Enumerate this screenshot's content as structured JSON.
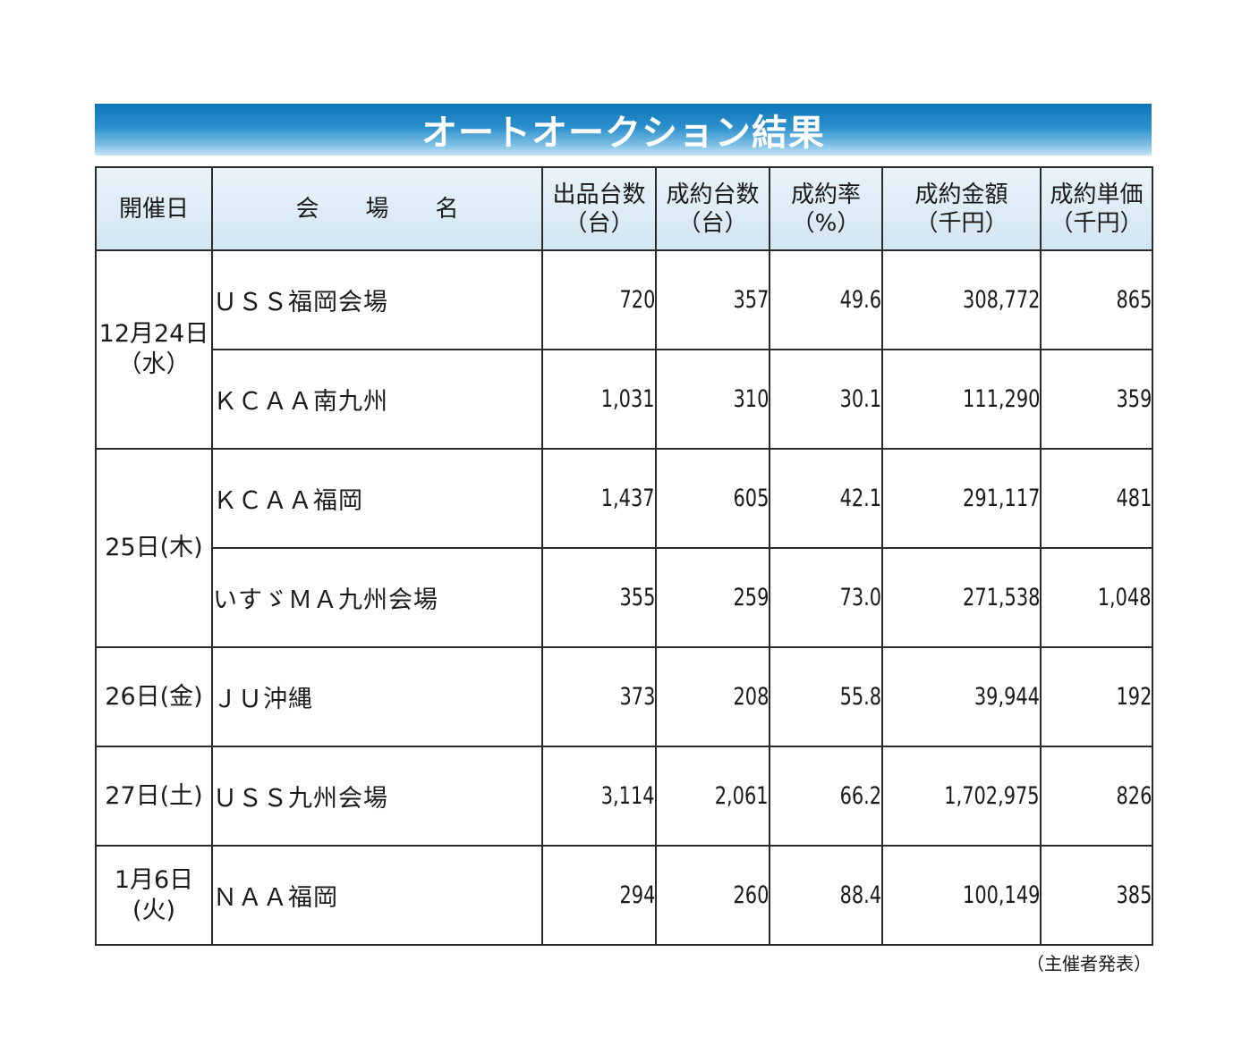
{
  "title": "オートオークション結果",
  "headers": {
    "date": "開催日",
    "venue": "会　　場　　名",
    "listed": "出品台数",
    "listed_unit": "（台）",
    "sold": "成約台数",
    "sold_unit": "（台）",
    "rate": "成約率",
    "rate_unit": "（%）",
    "amount": "成約金額",
    "amount_unit": "（千円）",
    "unit_price": "成約単価",
    "unit_price_unit": "（千円）"
  },
  "groups": [
    {
      "date_line1": "12月24日",
      "date_line2": "（水）"
    },
    {
      "date_line1": "25日(木)",
      "date_line2": ""
    },
    {
      "date_line1": "26日(金)",
      "date_line2": ""
    },
    {
      "date_line1": "27日(土)",
      "date_line2": ""
    },
    {
      "date_line1": "1月6日",
      "date_line2": "(火)"
    }
  ],
  "rows": [
    {
      "venue": "ＵＳＳ福岡会場",
      "listed": "720",
      "sold": "357",
      "rate": "49.6",
      "amount": "308,772",
      "unit_price": "865"
    },
    {
      "venue": "ＫＣＡＡ南九州",
      "listed": "1,031",
      "sold": "310",
      "rate": "30.1",
      "amount": "111,290",
      "unit_price": "359"
    },
    {
      "venue": "ＫＣＡＡ福岡",
      "listed": "1,437",
      "sold": "605",
      "rate": "42.1",
      "amount": "291,117",
      "unit_price": "481"
    },
    {
      "venue": "いすゞＭＡ九州会場",
      "listed": "355",
      "sold": "259",
      "rate": "73.0",
      "amount": "271,538",
      "unit_price": "1,048"
    },
    {
      "venue": "ＪＵ沖縄",
      "listed": "373",
      "sold": "208",
      "rate": "55.8",
      "amount": "39,944",
      "unit_price": "192"
    },
    {
      "venue": "ＵＳＳ九州会場",
      "listed": "3,114",
      "sold": "2,061",
      "rate": "66.2",
      "amount": "1,702,975",
      "unit_price": "826"
    },
    {
      "venue": "ＮＡＡ福岡",
      "listed": "294",
      "sold": "260",
      "rate": "88.4",
      "amount": "100,149",
      "unit_price": "385"
    }
  ],
  "footnote": "（主催者発表）"
}
